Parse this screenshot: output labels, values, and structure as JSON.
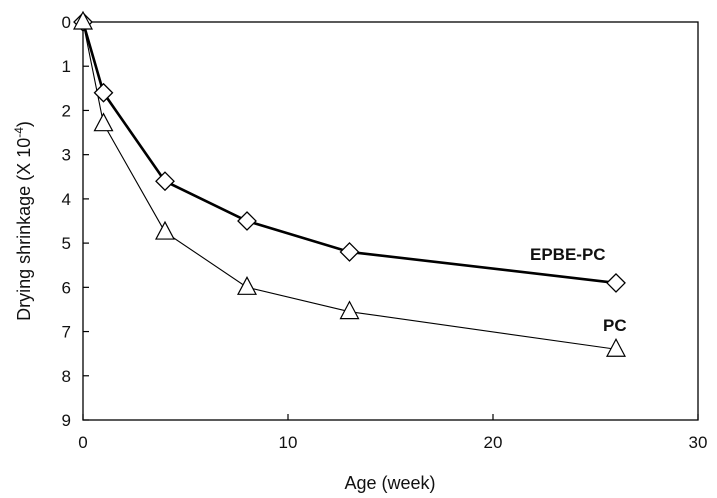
{
  "chart_data": {
    "type": "line",
    "title": "",
    "xlabel": "Age  (week)",
    "ylabel": "Drying shrinkage  (X 10",
    "ylabel_exponent": "-4",
    "ylabel_close": ")",
    "xlim": [
      0,
      30
    ],
    "ylim": [
      0,
      9
    ],
    "y_axis_inverted": true,
    "x_ticks": [
      "0",
      "10",
      "20",
      "30"
    ],
    "y_ticks": [
      "0",
      "1",
      "2",
      "3",
      "4",
      "5",
      "6",
      "7",
      "8",
      "9"
    ],
    "grid": false,
    "legend": "none; series labeled directly next to line ends",
    "series": [
      {
        "name": "EPBE-PC",
        "marker": "diamond",
        "line_style": "thick",
        "color": "#000000",
        "x": [
          0,
          1,
          4,
          8,
          13,
          26
        ],
        "y": [
          0,
          1.6,
          3.6,
          4.5,
          5.2,
          5.9
        ]
      },
      {
        "name": "PC",
        "marker": "triangle",
        "line_style": "thin",
        "color": "#000000",
        "x": [
          0,
          1,
          4,
          8,
          13,
          26
        ],
        "y": [
          0,
          2.3,
          4.75,
          6.0,
          6.55,
          7.4
        ]
      }
    ]
  }
}
